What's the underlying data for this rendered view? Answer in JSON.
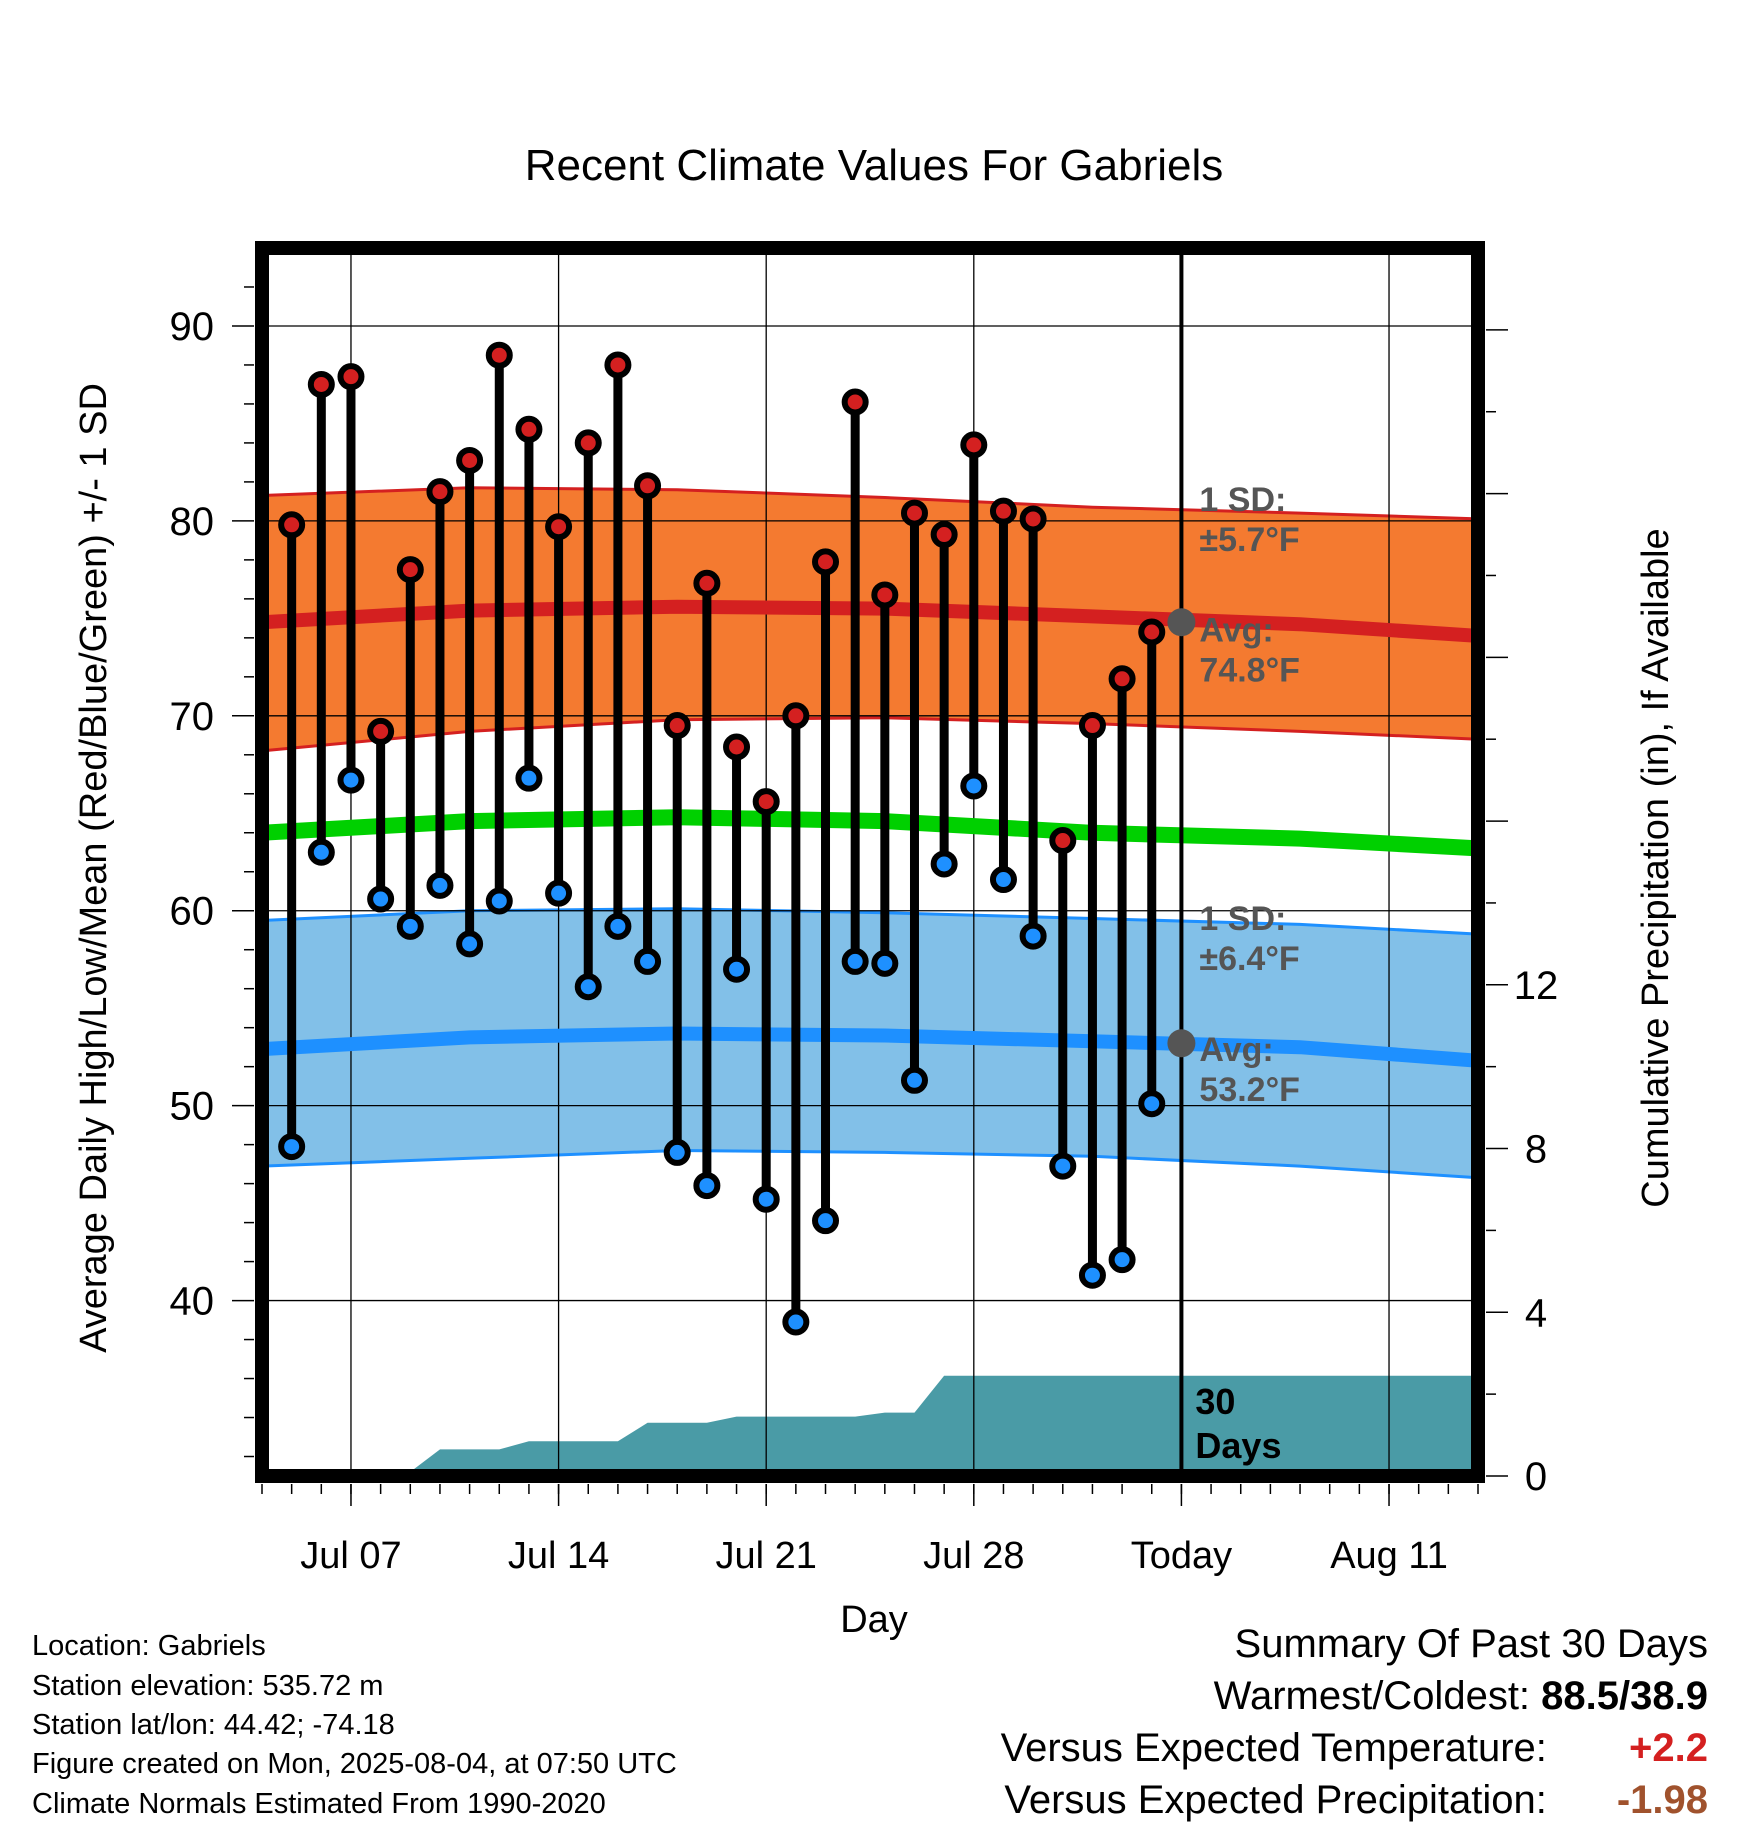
{
  "chart_data": {
    "type": "line",
    "title": "Recent Climate Values For Gabriels",
    "xlabel": "Day",
    "ylabel": "Average Daily High/Low/Mean (Red/Blue/Green) +/- 1 SD",
    "y2label": "Cumulative Precipitation (in), If Available",
    "ylim": [
      31,
      94
    ],
    "y2lim": [
      0,
      30
    ],
    "yticks": [
      40,
      50,
      60,
      70,
      80,
      90
    ],
    "y2ticks": [
      0,
      4,
      8,
      12
    ],
    "xlim": [
      "2025-07-04",
      "2025-08-14"
    ],
    "xticks": [
      {
        "date": "2025-07-07",
        "label": "Jul 07"
      },
      {
        "date": "2025-07-14",
        "label": "Jul 14"
      },
      {
        "date": "2025-07-21",
        "label": "Jul 21"
      },
      {
        "date": "2025-07-28",
        "label": "Jul 28"
      },
      {
        "date": "2025-08-04",
        "label": "Today"
      },
      {
        "date": "2025-08-11",
        "label": "Aug 11"
      }
    ],
    "today": "2025-08-04",
    "today_label": [
      "30",
      "Days"
    ],
    "grid": true,
    "days": [
      "2025-07-05",
      "2025-07-06",
      "2025-07-07",
      "2025-07-08",
      "2025-07-09",
      "2025-07-10",
      "2025-07-11",
      "2025-07-12",
      "2025-07-13",
      "2025-07-14",
      "2025-07-15",
      "2025-07-16",
      "2025-07-17",
      "2025-07-18",
      "2025-07-19",
      "2025-07-20",
      "2025-07-21",
      "2025-07-22",
      "2025-07-23",
      "2025-07-24",
      "2025-07-25",
      "2025-07-26",
      "2025-07-27",
      "2025-07-28",
      "2025-07-29",
      "2025-07-30",
      "2025-07-31",
      "2025-08-01",
      "2025-08-02",
      "2025-08-03"
    ],
    "highs": [
      79.8,
      87.0,
      87.4,
      69.2,
      77.5,
      81.5,
      83.1,
      88.5,
      84.7,
      79.7,
      84.0,
      88.0,
      81.8,
      69.5,
      76.8,
      68.4,
      65.6,
      70.0,
      77.9,
      86.1,
      76.2,
      80.4,
      79.3,
      83.9,
      80.5,
      80.1,
      63.6,
      69.5,
      71.9,
      74.3
    ],
    "lows": [
      47.9,
      63.0,
      66.7,
      60.6,
      59.2,
      61.3,
      58.3,
      60.5,
      66.8,
      60.9,
      56.1,
      59.2,
      57.4,
      47.6,
      45.9,
      57.0,
      45.2,
      38.9,
      44.1,
      57.4,
      57.3,
      51.3,
      62.4,
      66.4,
      61.6,
      58.7,
      46.9,
      41.3,
      42.1,
      50.1
    ],
    "normals": {
      "days": [
        "2025-07-04",
        "2025-07-11",
        "2025-07-18",
        "2025-07-25",
        "2025-08-01",
        "2025-08-08",
        "2025-08-14"
      ],
      "high_avg": [
        74.8,
        75.4,
        75.6,
        75.5,
        75.1,
        74.7,
        74.1
      ],
      "high_upper": [
        81.3,
        81.7,
        81.6,
        81.2,
        80.7,
        80.4,
        80.1
      ],
      "high_lower": [
        68.2,
        69.2,
        69.8,
        69.9,
        69.6,
        69.2,
        68.8
      ],
      "mean_avg": [
        64.0,
        64.6,
        64.8,
        64.6,
        64.0,
        63.7,
        63.2
      ],
      "low_avg": [
        52.9,
        53.5,
        53.7,
        53.6,
        53.3,
        53.0,
        52.3
      ],
      "low_upper": [
        59.5,
        60.0,
        60.1,
        59.9,
        59.6,
        59.3,
        58.8
      ],
      "low_lower": [
        46.9,
        47.3,
        47.7,
        47.6,
        47.4,
        46.9,
        46.3
      ]
    },
    "annotations": {
      "high_sd": [
        "1 SD:",
        "±5.7°F"
      ],
      "high_avg": [
        "Avg:",
        "74.8°F"
      ],
      "low_sd": [
        "1 SD:",
        "±6.4°F"
      ],
      "low_avg": [
        "Avg:",
        "53.2°F"
      ]
    },
    "precip": {
      "days": [
        "2025-07-04",
        "2025-07-08",
        "2025-07-09",
        "2025-07-10",
        "2025-07-12",
        "2025-07-13",
        "2025-07-15",
        "2025-07-16",
        "2025-07-17",
        "2025-07-19",
        "2025-07-20",
        "2025-07-24",
        "2025-07-25",
        "2025-07-26",
        "2025-07-27",
        "2025-08-04",
        "2025-08-14"
      ],
      "values": [
        0,
        0,
        0.1,
        0.65,
        0.65,
        0.85,
        0.85,
        0.85,
        1.3,
        1.3,
        1.45,
        1.45,
        1.55,
        1.55,
        2.45,
        2.45,
        2.45
      ]
    },
    "colors": {
      "high_band": "#f47a30",
      "high_line": "#d42020",
      "low_band": "#82c0e8",
      "low_line": "#1e90ff",
      "mean_line": "#00d000",
      "precip": "#4a9ba6",
      "high_marker": "#d42020",
      "low_marker": "#1e90ff",
      "annotation": "#555555"
    }
  },
  "info": {
    "location": "Location: Gabriels",
    "elevation": "Station elevation: 535.72 m",
    "latlon": "Station lat/lon: 44.42; -74.18",
    "created": "Figure created on Mon, 2025-08-04, at 07:50 UTC",
    "normals": "Climate Normals Estimated From 1990-2020"
  },
  "summary": {
    "title": "Summary Of Past 30 Days",
    "warm_cold_label": "Warmest/Coldest:",
    "warm_cold_value": "88.5/38.9",
    "temp_label": "Versus Expected Temperature:",
    "temp_value": "+2.2",
    "temp_color": "#d42020",
    "precip_label": "Versus Expected Precipitation:",
    "precip_value": "-1.98",
    "precip_color": "#a0522d"
  }
}
